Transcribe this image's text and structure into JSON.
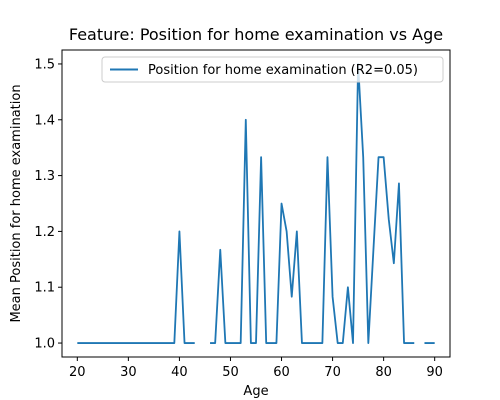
{
  "chart_data": {
    "type": "line",
    "title": "Feature: Position for home examination vs Age",
    "xlabel": "Age",
    "ylabel": "Mean Position for home examination",
    "xlim": [
      17,
      93
    ],
    "ylim": [
      0.975,
      1.525
    ],
    "xticks": [
      20,
      30,
      40,
      50,
      60,
      70,
      80,
      90
    ],
    "yticks": [
      1.0,
      1.1,
      1.2,
      1.3,
      1.4,
      1.5
    ],
    "ytick_labels": [
      "1.0",
      "1.1",
      "1.2",
      "1.3",
      "1.4",
      "1.5"
    ],
    "legend_position": "top-right",
    "grid": false,
    "series": [
      {
        "name": "Position for home examination (R2=0.05)",
        "color": "#1f77b4",
        "points": [
          [
            20,
            1.0
          ],
          [
            21,
            1.0
          ],
          [
            22,
            1.0
          ],
          [
            23,
            1.0
          ],
          [
            24,
            1.0
          ],
          [
            25,
            1.0
          ],
          [
            26,
            1.0
          ],
          [
            27,
            1.0
          ],
          [
            28,
            1.0
          ],
          [
            29,
            1.0
          ],
          [
            30,
            1.0
          ],
          [
            31,
            1.0
          ],
          [
            32,
            1.0
          ],
          [
            33,
            1.0
          ],
          [
            34,
            1.0
          ],
          [
            35,
            1.0
          ],
          [
            36,
            1.0
          ],
          [
            37,
            1.0
          ],
          [
            38,
            1.0
          ],
          [
            39,
            1.0
          ],
          [
            40,
            1.2
          ],
          [
            41,
            1.0
          ],
          [
            42,
            1.0
          ],
          [
            43,
            1.0
          ],
          [
            44,
            null
          ],
          [
            45,
            null
          ],
          [
            46,
            1.0
          ],
          [
            47,
            1.0
          ],
          [
            48,
            1.167
          ],
          [
            49,
            1.0
          ],
          [
            50,
            1.0
          ],
          [
            51,
            1.0
          ],
          [
            52,
            1.0
          ],
          [
            53,
            1.4
          ],
          [
            54,
            1.0
          ],
          [
            55,
            1.0
          ],
          [
            56,
            1.333
          ],
          [
            57,
            1.0
          ],
          [
            58,
            1.0
          ],
          [
            59,
            1.0
          ],
          [
            60,
            1.25
          ],
          [
            61,
            1.2
          ],
          [
            62,
            1.083
          ],
          [
            63,
            1.2
          ],
          [
            64,
            1.0
          ],
          [
            65,
            1.0
          ],
          [
            66,
            1.0
          ],
          [
            67,
            1.0
          ],
          [
            68,
            1.0
          ],
          [
            69,
            1.333
          ],
          [
            70,
            1.083
          ],
          [
            71,
            1.0
          ],
          [
            72,
            1.0
          ],
          [
            73,
            1.1
          ],
          [
            74,
            1.0
          ],
          [
            75,
            1.5
          ],
          [
            76,
            1.333
          ],
          [
            77,
            1.0
          ],
          [
            78,
            1.167
          ],
          [
            79,
            1.333
          ],
          [
            80,
            1.333
          ],
          [
            81,
            1.222
          ],
          [
            82,
            1.143
          ],
          [
            83,
            1.286
          ],
          [
            84,
            1.0
          ],
          [
            85,
            1.0
          ],
          [
            86,
            1.0
          ],
          [
            87,
            null
          ],
          [
            88,
            1.0
          ],
          [
            89,
            1.0
          ],
          [
            90,
            1.0
          ]
        ]
      }
    ]
  }
}
